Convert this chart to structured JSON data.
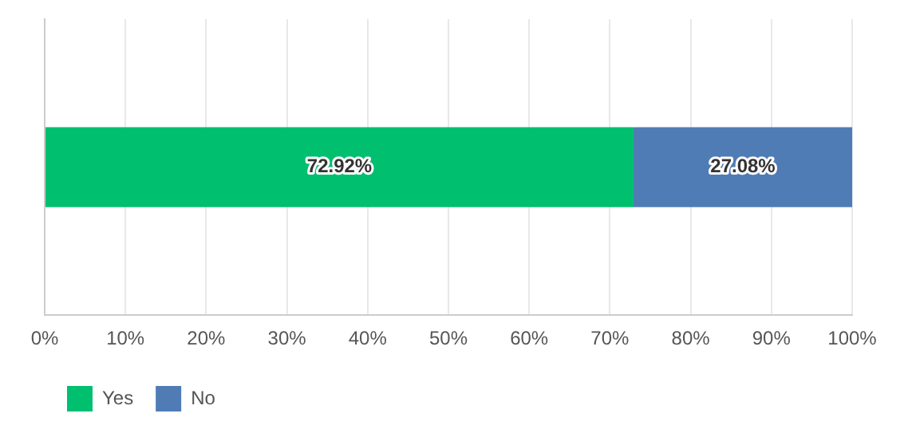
{
  "chart_data": {
    "type": "bar",
    "orientation": "horizontal",
    "stacked": true,
    "categories": [
      null
    ],
    "series": [
      {
        "name": "Yes",
        "color": "#00bf6f",
        "values": [
          72.92
        ],
        "value_labels": [
          "72.92%"
        ]
      },
      {
        "name": "No",
        "color": "#507cb6",
        "values": [
          27.08
        ],
        "value_labels": [
          "27.08%"
        ]
      }
    ],
    "xlim": [
      0,
      100
    ],
    "xticks": [
      {
        "value": 0,
        "label": "0%"
      },
      {
        "value": 10,
        "label": "10%"
      },
      {
        "value": 20,
        "label": "20%"
      },
      {
        "value": 30,
        "label": "30%"
      },
      {
        "value": 40,
        "label": "40%"
      },
      {
        "value": 50,
        "label": "50%"
      },
      {
        "value": 60,
        "label": "60%"
      },
      {
        "value": 70,
        "label": "70%"
      },
      {
        "value": 80,
        "label": "80%"
      },
      {
        "value": 90,
        "label": "90%"
      },
      {
        "value": 100,
        "label": "100%"
      }
    ],
    "grid": "x",
    "legend": "bottom left",
    "tick_labels": "x"
  }
}
